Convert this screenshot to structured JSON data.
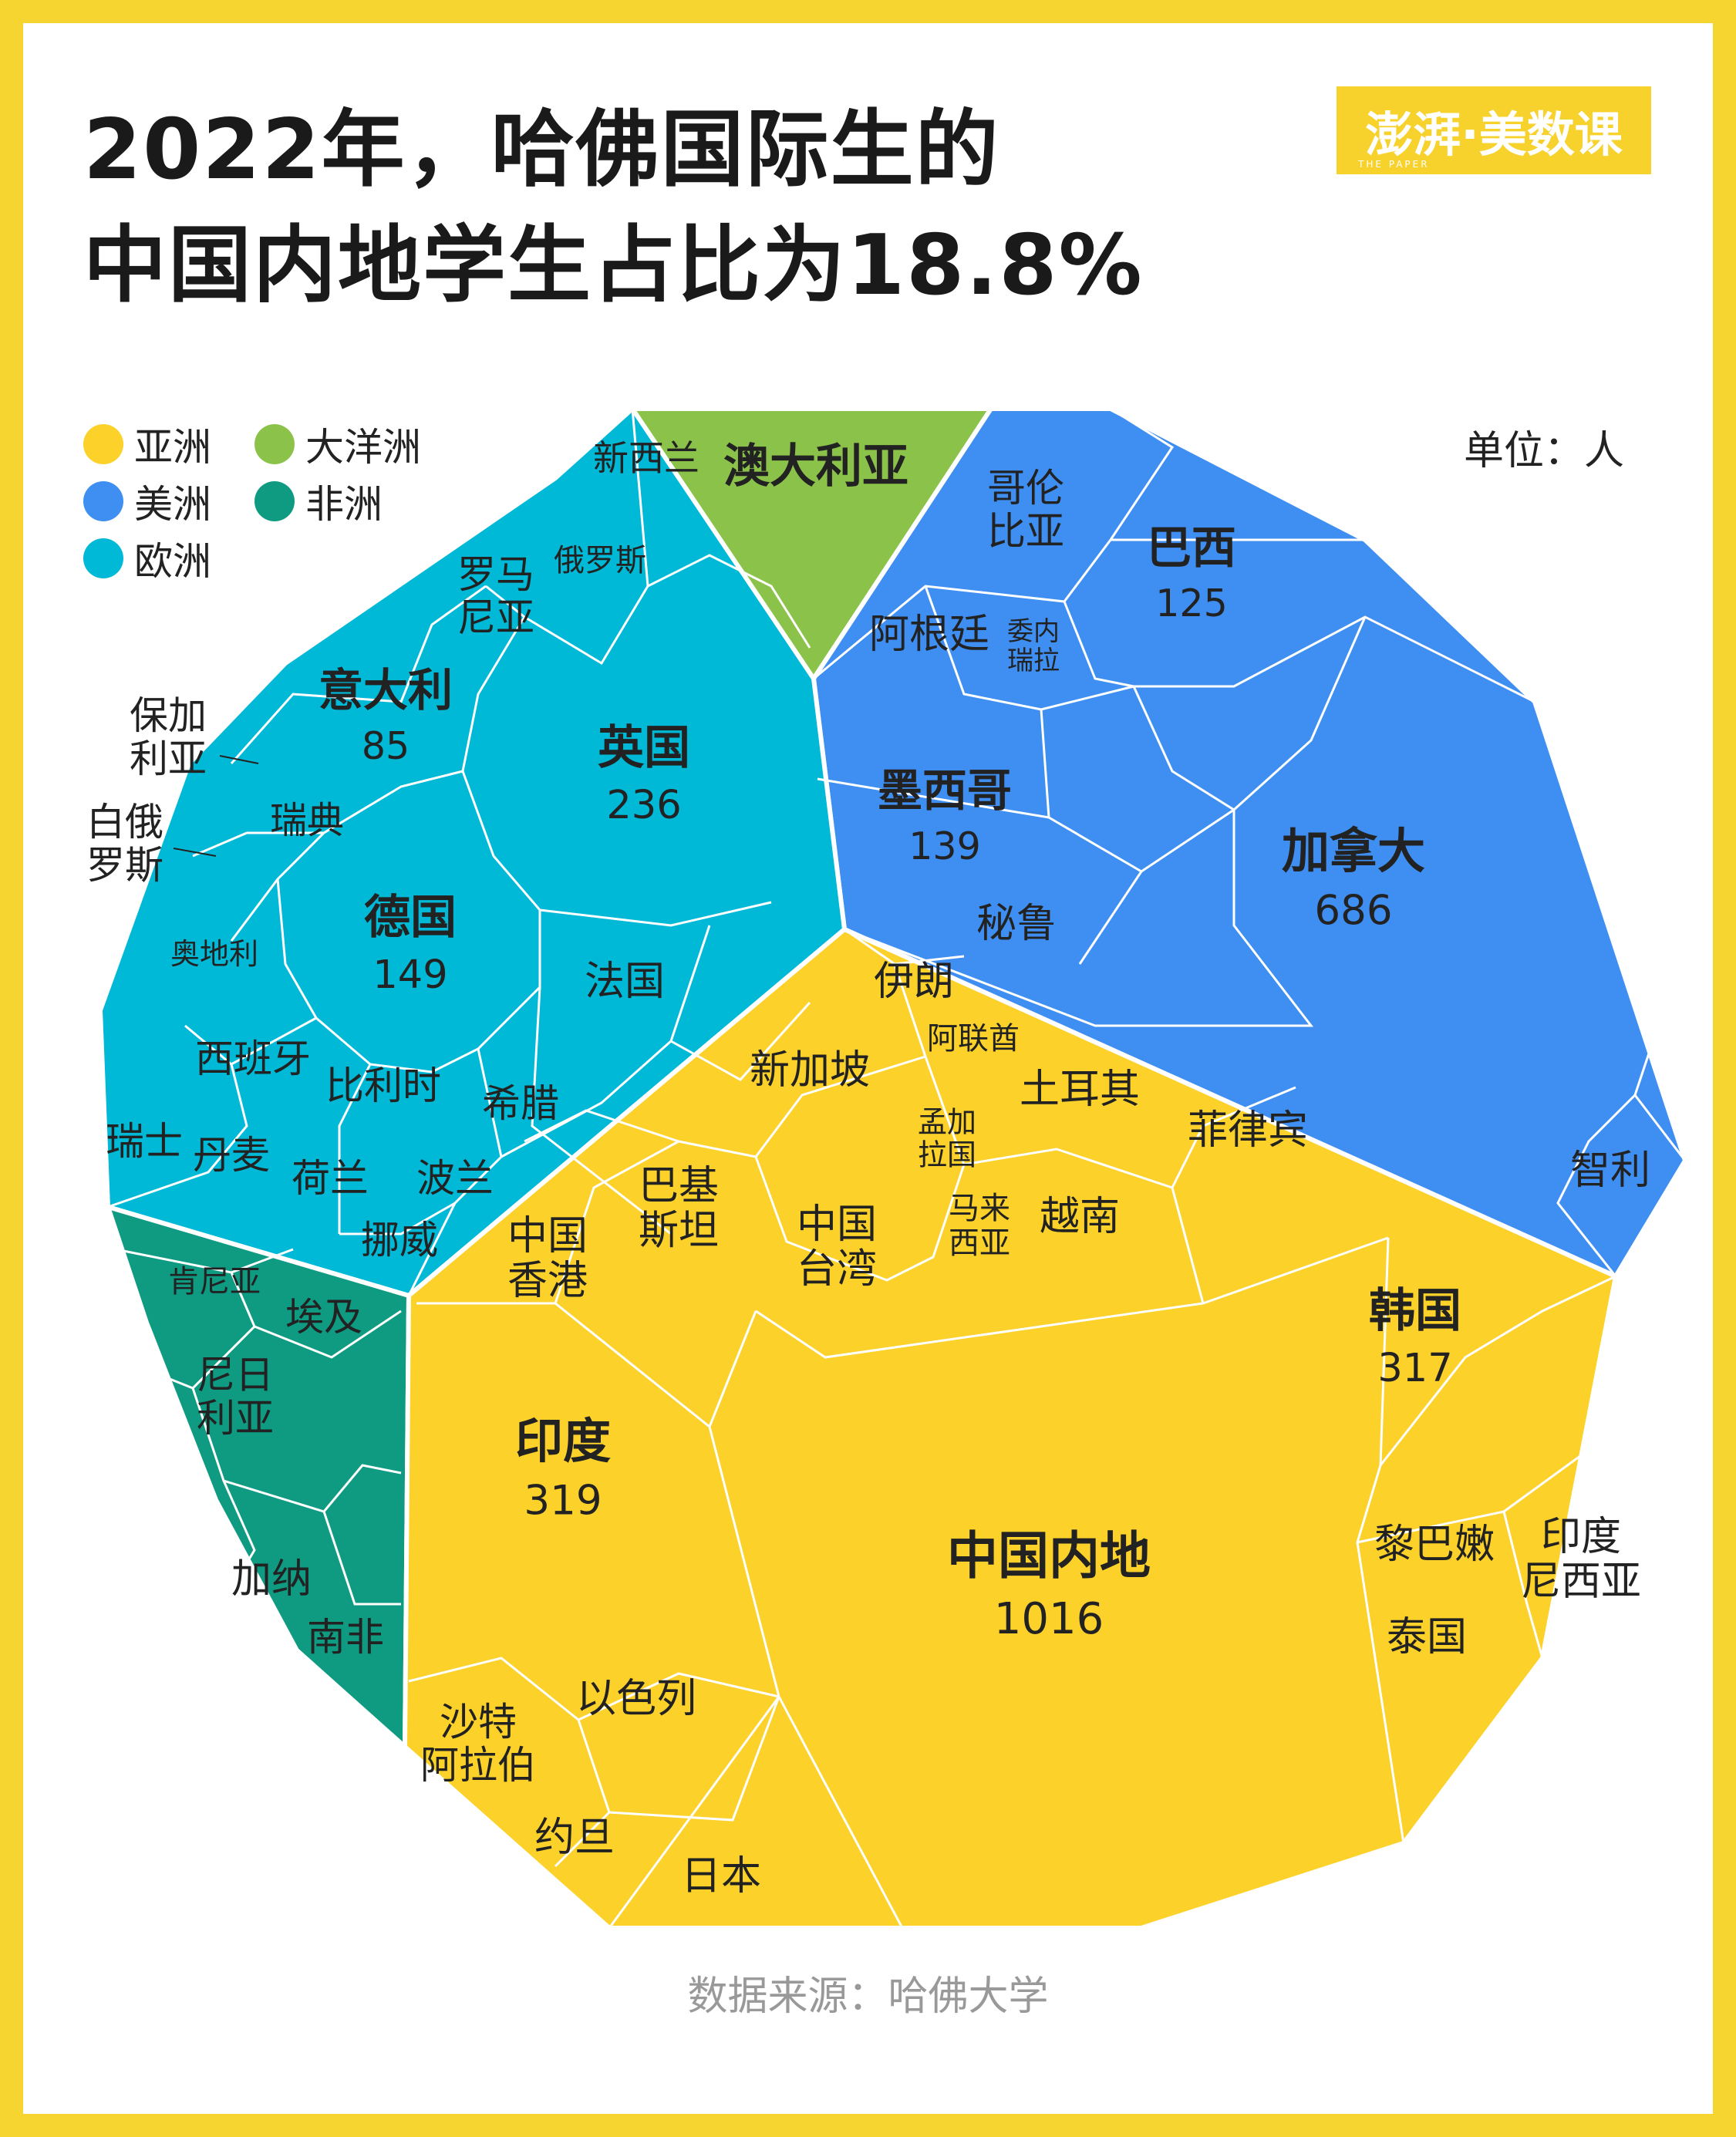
{
  "title_line1": "2022年，哈佛国际生的",
  "title_line2": "中国内地学生占比为18.8%",
  "logo_text": "澎湃·美数课",
  "logo_sub": "THE PAPER",
  "unit": "单位：人",
  "source": "数据来源：哈佛大学",
  "colors": {
    "asia": "#fbd12a",
    "americas": "#3f8ff2",
    "europe": "#00b9d7",
    "oceania": "#8bc34a",
    "africa": "#0f9a82",
    "frame": "#f6d531"
  },
  "legend": [
    {
      "key": "asia",
      "label": "亚洲"
    },
    {
      "key": "oceania",
      "label": "大洋洲"
    },
    {
      "key": "americas",
      "label": "美洲"
    },
    {
      "key": "africa",
      "label": "非洲"
    },
    {
      "key": "europe",
      "label": "欧洲"
    }
  ],
  "chart_data": {
    "type": "voronoi-treemap",
    "title": "2022年，哈佛国际生的中国内地学生占比为18.8%",
    "unit": "人",
    "groups": [
      {
        "region": "亚洲",
        "countries": [
          {
            "name": "中国内地",
            "value": 1016
          },
          {
            "name": "印度",
            "value": 319
          },
          {
            "name": "韩国",
            "value": 317
          },
          {
            "name": "日本"
          },
          {
            "name": "以色列"
          },
          {
            "name": "沙特阿拉伯"
          },
          {
            "name": "约旦"
          },
          {
            "name": "中国香港"
          },
          {
            "name": "巴基斯坦"
          },
          {
            "name": "中国台湾"
          },
          {
            "name": "新加坡"
          },
          {
            "name": "伊朗"
          },
          {
            "name": "阿联酋"
          },
          {
            "name": "孟加拉国"
          },
          {
            "name": "土耳其"
          },
          {
            "name": "马来西亚"
          },
          {
            "name": "越南"
          },
          {
            "name": "菲律宾"
          },
          {
            "name": "黎巴嫩"
          },
          {
            "name": "印度尼西亚"
          },
          {
            "name": "泰国"
          }
        ]
      },
      {
        "region": "美洲",
        "countries": [
          {
            "name": "加拿大",
            "value": 686
          },
          {
            "name": "墨西哥",
            "value": 139
          },
          {
            "name": "巴西",
            "value": 125
          },
          {
            "name": "哥伦比亚"
          },
          {
            "name": "阿根廷"
          },
          {
            "name": "委内瑞拉"
          },
          {
            "name": "秘鲁"
          },
          {
            "name": "智利"
          }
        ]
      },
      {
        "region": "欧洲",
        "countries": [
          {
            "name": "英国",
            "value": 236
          },
          {
            "name": "德国",
            "value": 149
          },
          {
            "name": "意大利",
            "value": 85
          },
          {
            "name": "法国"
          },
          {
            "name": "罗马尼亚"
          },
          {
            "name": "俄罗斯"
          },
          {
            "name": "保加利亚"
          },
          {
            "name": "白俄罗斯"
          },
          {
            "name": "瑞典"
          },
          {
            "name": "奥地利"
          },
          {
            "name": "西班牙"
          },
          {
            "name": "比利时"
          },
          {
            "name": "希腊"
          },
          {
            "name": "瑞士"
          },
          {
            "name": "丹麦"
          },
          {
            "name": "荷兰"
          },
          {
            "name": "波兰"
          },
          {
            "name": "挪威"
          }
        ]
      },
      {
        "region": "大洋洲",
        "countries": [
          {
            "name": "澳大利亚"
          },
          {
            "name": "新西兰"
          }
        ]
      },
      {
        "region": "非洲",
        "countries": [
          {
            "name": "肯尼亚"
          },
          {
            "name": "埃及"
          },
          {
            "name": "尼日利亚"
          },
          {
            "name": "加纳"
          },
          {
            "name": "南非"
          }
        ]
      }
    ]
  }
}
